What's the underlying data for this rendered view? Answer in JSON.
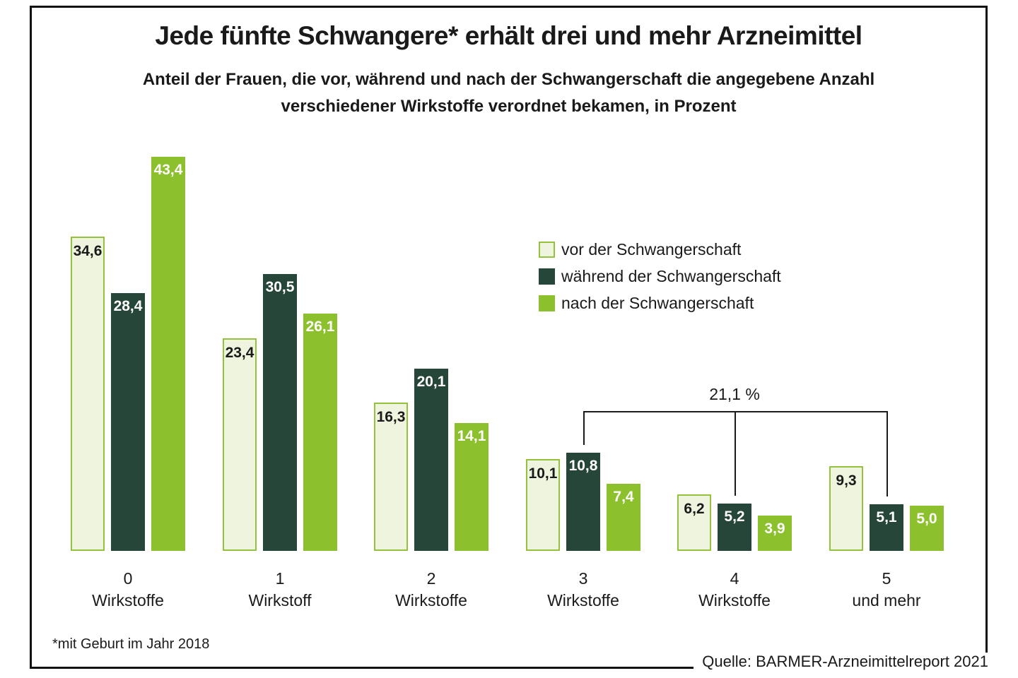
{
  "title": "Jede fünfte Schwangere* erhält drei und mehr Arzneimittel",
  "subtitle_line1": "Anteil der Frauen, die vor, während und nach der Schwangerschaft die angegebene Anzahl",
  "subtitle_line2": "verschiedener Wirkstoffe verordnet bekamen, in Prozent",
  "legend": [
    {
      "label": "vor der Schwangerschaft",
      "fill": "#eef4dd",
      "border": "#94c23c"
    },
    {
      "label": "während der Schwangerschaft",
      "fill": "#26463a",
      "border": "#26463a"
    },
    {
      "label": "nach der Schwangerschaft",
      "fill": "#8cc02c",
      "border": "#8cc02c"
    }
  ],
  "footnote": "*mit Geburt im Jahr 2018",
  "source": "Quelle: BARMER-Arzneimittelreport 2021",
  "colors": {
    "pre_fill": "#eef4dd",
    "pre_border": "#94c23c",
    "during": "#26463a",
    "after": "#8cc02c",
    "text": "#1a1a1a",
    "frame": "#111111"
  },
  "chart_data": {
    "type": "bar",
    "title": "Jede fünfte Schwangere* erhält drei und mehr Arzneimittel",
    "unit": "Prozent",
    "grid": false,
    "legend_position": "inside-top-right",
    "ylim": [
      0,
      45
    ],
    "categories": [
      [
        "0",
        "Wirkstoffe"
      ],
      [
        "1",
        "Wirkstoff"
      ],
      [
        "2",
        "Wirkstoffe"
      ],
      [
        "3",
        "Wirkstoffe"
      ],
      [
        "4",
        "Wirkstoffe"
      ],
      [
        "5",
        "und mehr"
      ]
    ],
    "series": [
      {
        "name": "vor der Schwangerschaft",
        "key": "vor-der-schwangerschaft",
        "values": [
          34.6,
          23.4,
          16.3,
          10.1,
          6.2,
          9.3
        ],
        "fill": "#eef4dd",
        "border": "#94c23c",
        "label_color": "#1a1a1a"
      },
      {
        "name": "während der Schwangerschaft",
        "key": "waehrend-der-schwangerschaft",
        "values": [
          28.4,
          30.5,
          20.1,
          10.8,
          5.2,
          5.1
        ],
        "fill": "#26463a",
        "border": "#26463a",
        "label_color": "#ffffff"
      },
      {
        "name": "nach der Schwangerschaft",
        "key": "nach-der-schwangerschaft",
        "values": [
          43.4,
          26.1,
          14.1,
          7.4,
          3.9,
          5.0
        ],
        "fill": "#8cc02c",
        "border": "#8cc02c",
        "label_color": "#ffffff"
      }
    ],
    "annotation": {
      "text": "21,1 %",
      "series_index": 1,
      "group_indices": [
        3,
        4,
        5
      ]
    }
  }
}
